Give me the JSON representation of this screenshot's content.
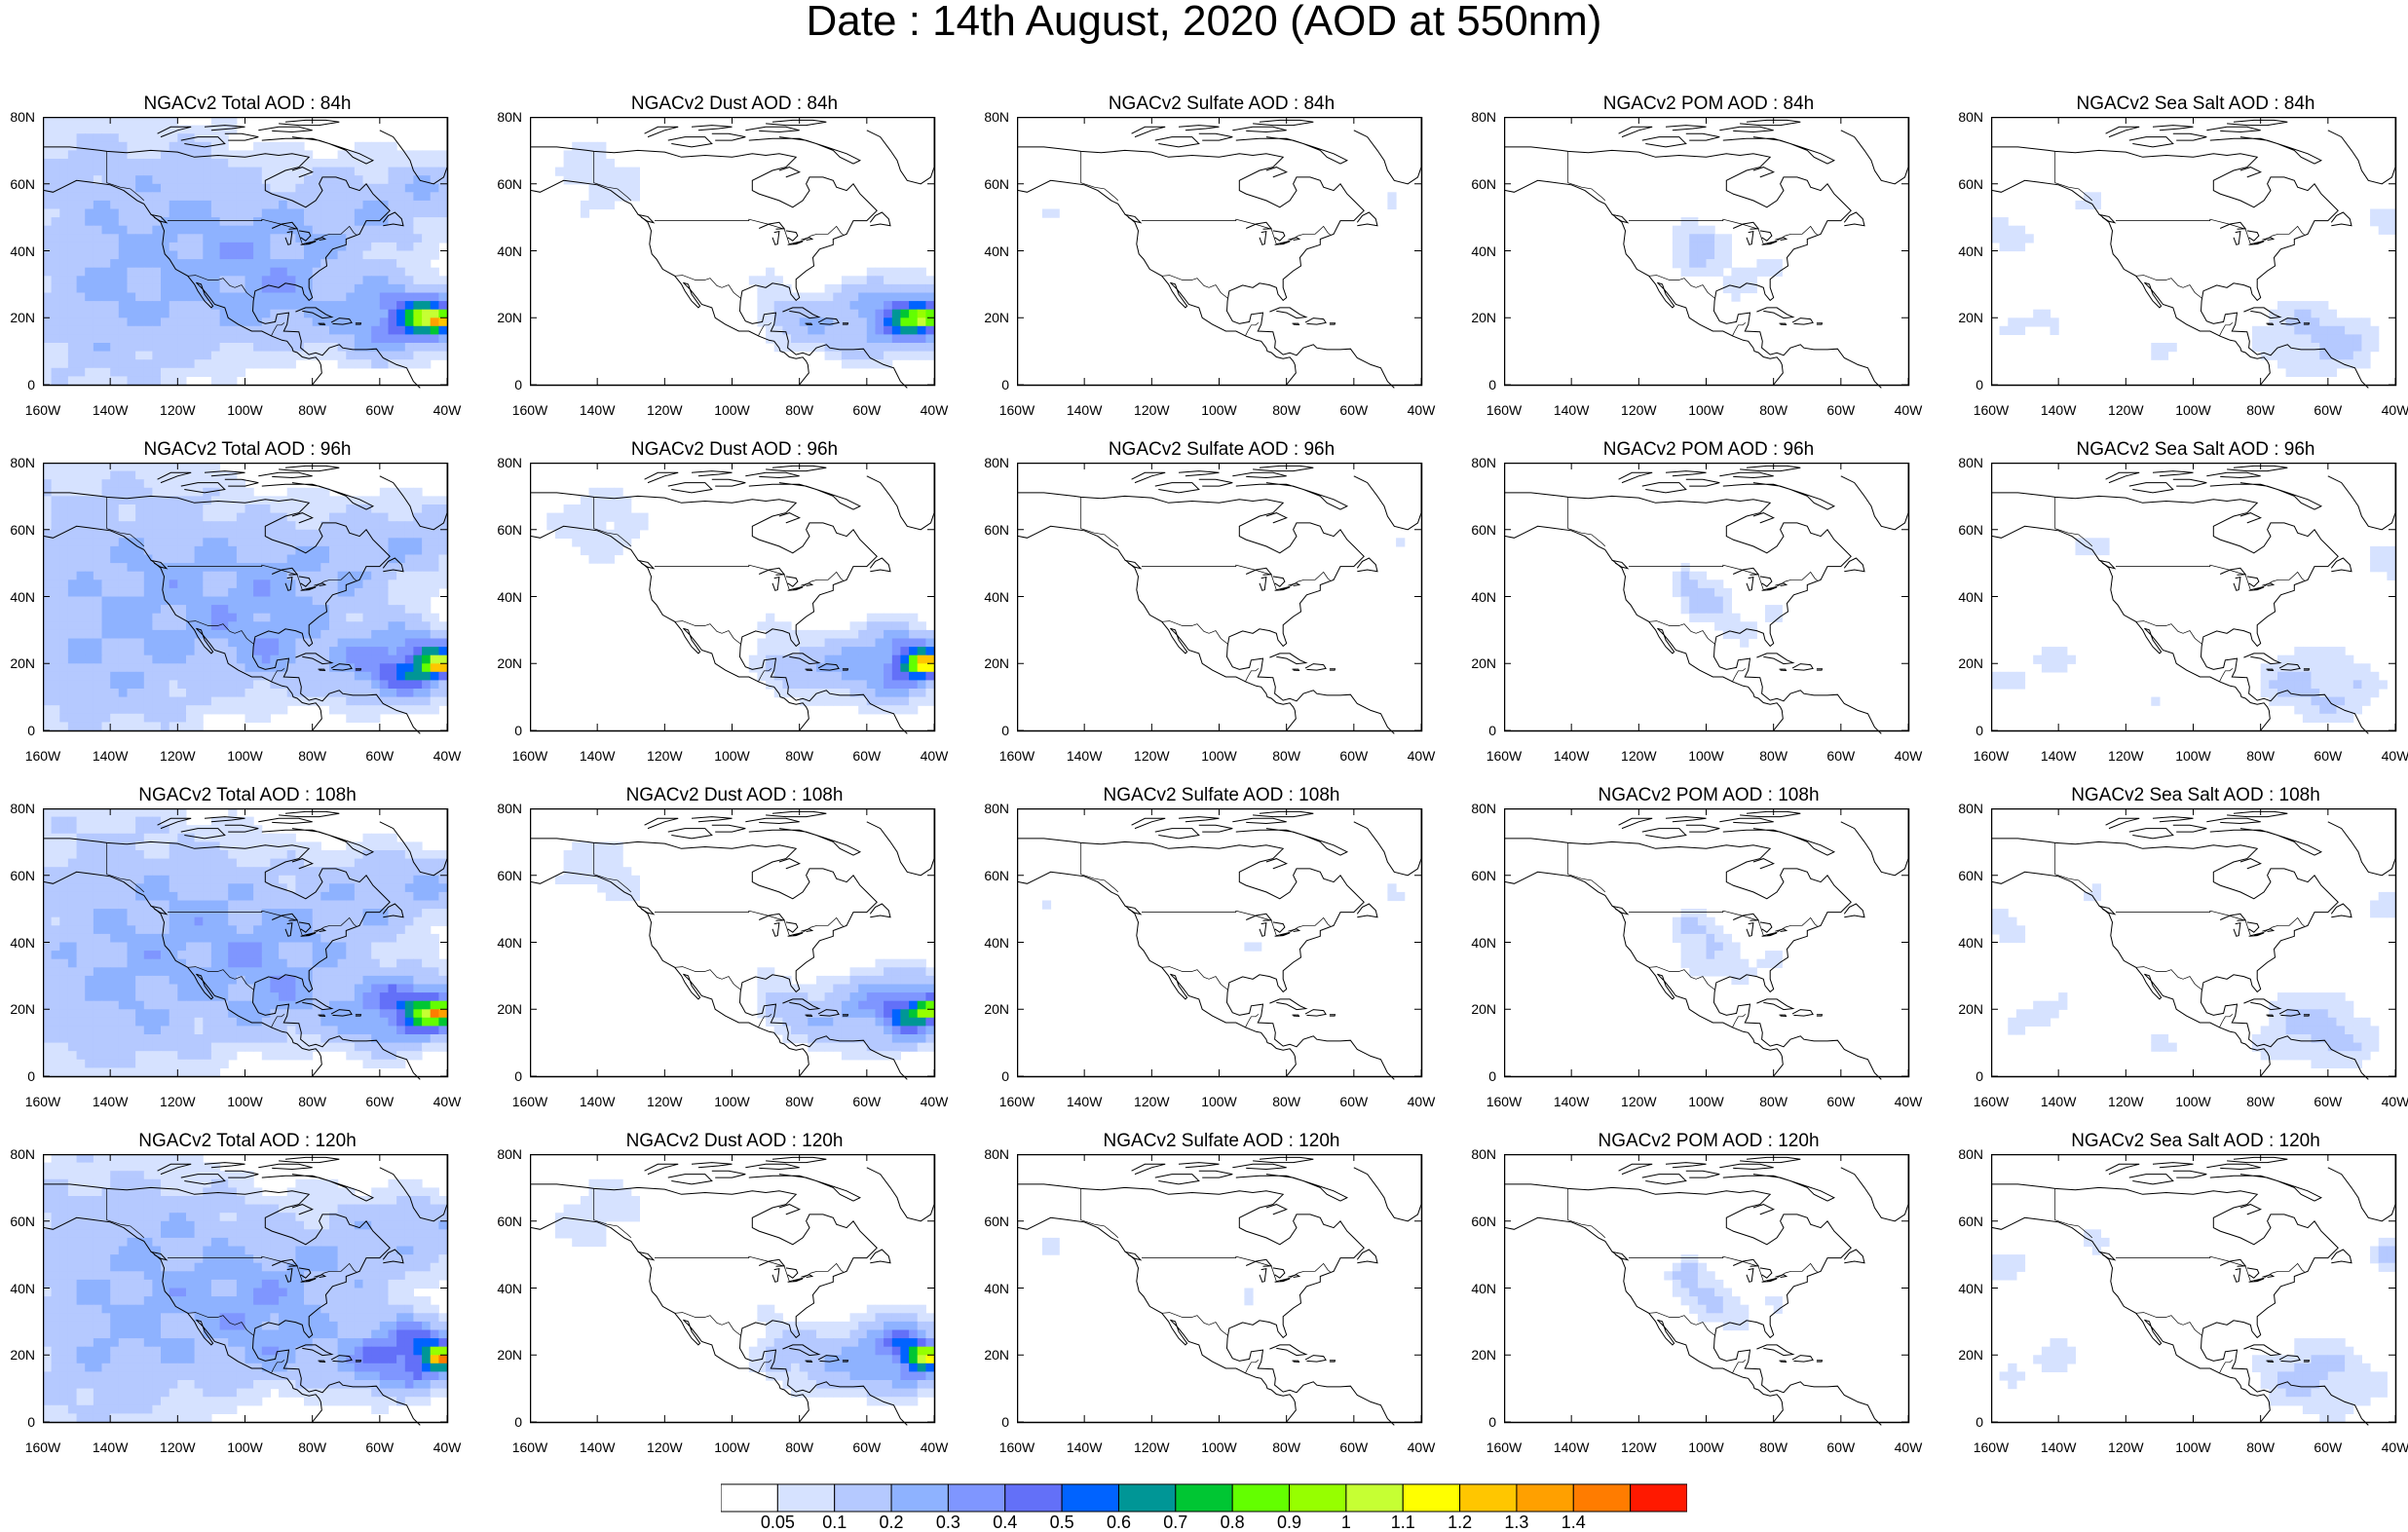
{
  "title": "Date : 14th August, 2020 (AOD at 550nm)",
  "panels": [
    {
      "title": "NGACv2 Total AOD : 84h",
      "species": "total"
    },
    {
      "title": "NGACv2 Dust AOD : 84h",
      "species": "dust"
    },
    {
      "title": "NGACv2 Sulfate AOD : 84h",
      "species": "sulfate"
    },
    {
      "title": "NGACv2 POM AOD : 84h",
      "species": "pom"
    },
    {
      "title": "NGACv2 Sea Salt AOD : 84h",
      "species": "seasalt"
    },
    {
      "title": "NGACv2 Total AOD : 96h",
      "species": "total"
    },
    {
      "title": "NGACv2 Dust AOD : 96h",
      "species": "dust"
    },
    {
      "title": "NGACv2 Sulfate AOD : 96h",
      "species": "sulfate"
    },
    {
      "title": "NGACv2 POM AOD : 96h",
      "species": "pom"
    },
    {
      "title": "NGACv2 Sea Salt AOD : 96h",
      "species": "seasalt"
    },
    {
      "title": "NGACv2 Total AOD : 108h",
      "species": "total"
    },
    {
      "title": "NGACv2 Dust AOD : 108h",
      "species": "dust"
    },
    {
      "title": "NGACv2 Sulfate AOD : 108h",
      "species": "sulfate"
    },
    {
      "title": "NGACv2 POM AOD : 108h",
      "species": "pom"
    },
    {
      "title": "NGACv2 Sea Salt AOD : 108h",
      "species": "seasalt"
    },
    {
      "title": "NGACv2 Total AOD : 120h",
      "species": "total"
    },
    {
      "title": "NGACv2 Dust AOD : 120h",
      "species": "dust"
    },
    {
      "title": "NGACv2 Sulfate AOD : 120h",
      "species": "sulfate"
    },
    {
      "title": "NGACv2 POM AOD : 120h",
      "species": "pom"
    },
    {
      "title": "NGACv2 Sea Salt  AOD : 120h",
      "species": "seasalt"
    }
  ],
  "axes": {
    "lat_labels": [
      "80N",
      "60N",
      "40N",
      "20N",
      "0"
    ],
    "lon_labels": [
      "160W",
      "140W",
      "120W",
      "100W",
      "80W",
      "60W",
      "40W"
    ]
  },
  "colorbar": {
    "labels": [
      "0.05",
      "0.1",
      "0.2",
      "0.3",
      "0.4",
      "0.5",
      "0.6",
      "0.7",
      "0.8",
      "0.9",
      "1",
      "1.1",
      "1.2",
      "1.3",
      "1.4"
    ],
    "colors": [
      "#ffffff",
      "#d6e2ff",
      "#b5c9ff",
      "#8eb2ff",
      "#7f96ff",
      "#6370f8",
      "#0063ff",
      "#009696",
      "#00c633",
      "#63ff00",
      "#96ff00",
      "#c6ff33",
      "#ffff00",
      "#ffc600",
      "#ffa000",
      "#ff7c00",
      "#ff1900"
    ]
  }
}
